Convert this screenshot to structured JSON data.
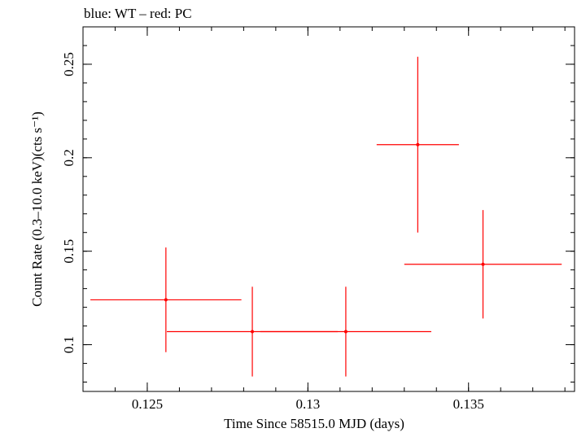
{
  "chart_data": {
    "type": "scatter",
    "title": "blue: WT – red: PC",
    "xlabel": "Time Since 58515.0 MJD (days)",
    "ylabel": "Count Rate (0.3–10.0 keV)(cts s⁻¹)",
    "xlim": [
      0.123,
      0.1383
    ],
    "ylim": [
      0.075,
      0.27
    ],
    "grid": false,
    "xticks": [
      {
        "value": 0.125,
        "label": "0.125"
      },
      {
        "value": 0.13,
        "label": "0.13"
      },
      {
        "value": 0.135,
        "label": "0.135"
      }
    ],
    "yticks": [
      {
        "value": 0.1,
        "label": "0.1"
      },
      {
        "value": 0.15,
        "label": "0.15"
      },
      {
        "value": 0.2,
        "label": "0.2"
      },
      {
        "value": 0.25,
        "label": "0.25"
      }
    ],
    "series": [
      {
        "color": "#ff0000",
        "points": [
          {
            "x": 0.12558,
            "xerr": [
              0.00235,
              0.00235
            ],
            "y": 0.124,
            "yerr": [
              0.028,
              0.028
            ]
          },
          {
            "x": 0.12827,
            "xerr": [
              0.00266,
              0.00266
            ],
            "y": 0.107,
            "yerr": [
              0.024,
              0.024
            ]
          },
          {
            "x": 0.13118,
            "xerr": [
              0.00266,
              0.00266
            ],
            "y": 0.107,
            "yerr": [
              0.024,
              0.024
            ]
          },
          {
            "x": 0.13342,
            "xerr": [
              0.00128,
              0.00128
            ],
            "y": 0.207,
            "yerr": [
              0.047,
              0.047
            ]
          },
          {
            "x": 0.13545,
            "xerr": [
              0.00245,
              0.00245
            ],
            "y": 0.143,
            "yerr": [
              0.029,
              0.029
            ]
          }
        ]
      }
    ]
  }
}
